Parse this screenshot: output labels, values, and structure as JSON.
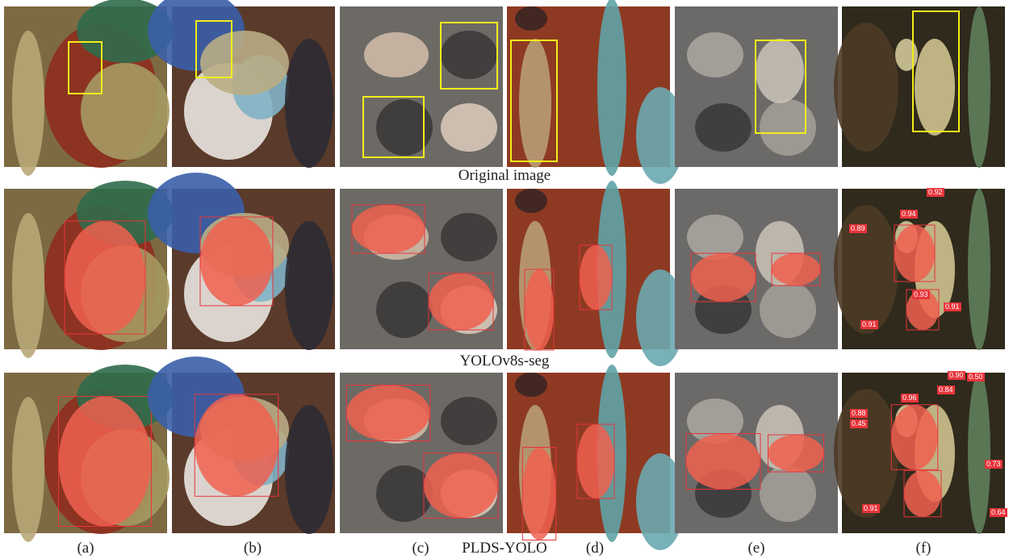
{
  "rows": [
    {
      "label": "Original image"
    },
    {
      "label": "YOLOv8s-seg",
      "scores_f": [
        "0.92",
        "0.94",
        "0.89",
        "0.93",
        "0.91",
        "0.91"
      ]
    },
    {
      "label": "PLDS-YOLO",
      "scores_f": [
        "0.90",
        "0.50",
        "0.96",
        "0.84",
        "0.88",
        "0.45",
        "0.73",
        "0.64",
        "0.91"
      ]
    }
  ],
  "columns": [
    "(a)",
    "(b)",
    "(c)",
    "(d)",
    "(e)",
    "(f)"
  ]
}
